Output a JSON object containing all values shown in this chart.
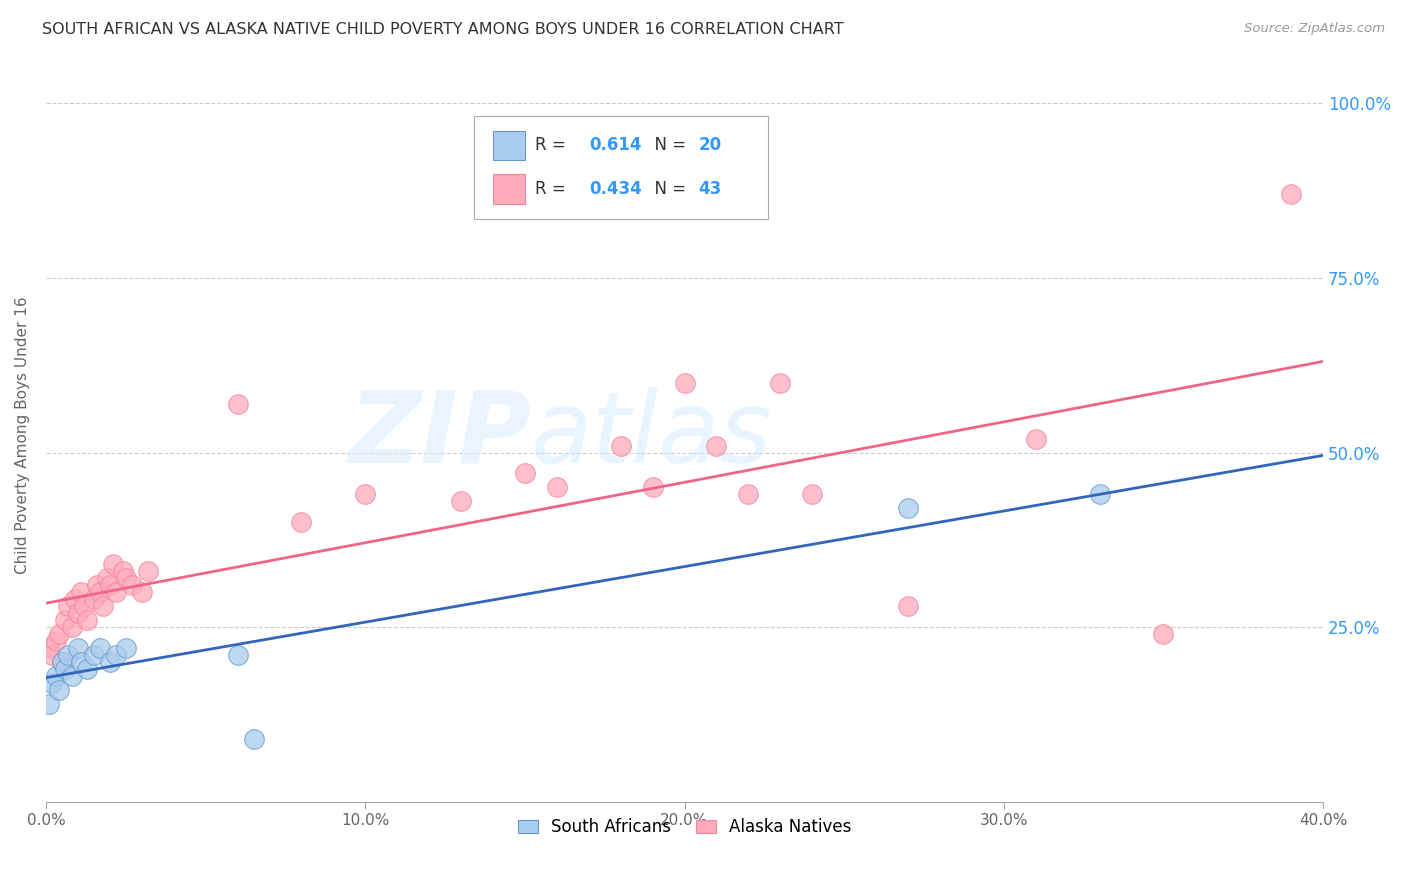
{
  "title": "SOUTH AFRICAN VS ALASKA NATIVE CHILD POVERTY AMONG BOYS UNDER 16 CORRELATION CHART",
  "source": "Source: ZipAtlas.com",
  "ylabel": "Child Poverty Among Boys Under 16",
  "xlim": [
    0.0,
    0.4
  ],
  "ylim": [
    0.0,
    1.05
  ],
  "xtick_labels": [
    "0.0%",
    "",
    "10.0%",
    "",
    "20.0%",
    "",
    "30.0%",
    "",
    "40.0%"
  ],
  "xtick_vals": [
    0.0,
    0.05,
    0.1,
    0.15,
    0.2,
    0.25,
    0.3,
    0.35,
    0.4
  ],
  "xtick_show": [
    "0.0%",
    "10.0%",
    "20.0%",
    "30.0%",
    "40.0%"
  ],
  "xtick_show_vals": [
    0.0,
    0.1,
    0.2,
    0.3,
    0.4
  ],
  "ytick_vals": [
    0.25,
    0.5,
    0.75,
    1.0
  ],
  "ytick_right_labels": [
    "25.0%",
    "50.0%",
    "75.0%",
    "100.0%"
  ],
  "background_color": "#ffffff",
  "grid_color": "#cccccc",
  "title_color": "#333333",
  "source_color": "#999999",
  "blue_scatter_color": "#aaccee",
  "blue_scatter_edge": "#6699cc",
  "pink_scatter_color": "#ffaabb",
  "pink_scatter_edge": "#ee8899",
  "blue_line_color": "#3366bb",
  "pink_line_color": "#ee6688",
  "legend_text_color": "#3399ff",
  "legend_label_color": "#333333",
  "south_africans_R": 0.614,
  "south_africans_N": 20,
  "alaska_natives_R": 0.434,
  "alaska_natives_N": 43,
  "sa_x": [
    0.001,
    0.002,
    0.003,
    0.004,
    0.005,
    0.006,
    0.007,
    0.008,
    0.01,
    0.011,
    0.013,
    0.015,
    0.017,
    0.02,
    0.022,
    0.025,
    0.06,
    0.065,
    0.27,
    0.33
  ],
  "sa_y": [
    0.14,
    0.17,
    0.18,
    0.16,
    0.2,
    0.19,
    0.21,
    0.18,
    0.22,
    0.2,
    0.19,
    0.21,
    0.22,
    0.2,
    0.21,
    0.22,
    0.21,
    0.09,
    0.42,
    0.44
  ],
  "an_x": [
    0.001,
    0.002,
    0.003,
    0.004,
    0.005,
    0.006,
    0.007,
    0.008,
    0.009,
    0.01,
    0.011,
    0.012,
    0.013,
    0.015,
    0.016,
    0.017,
    0.018,
    0.019,
    0.02,
    0.021,
    0.022,
    0.024,
    0.025,
    0.027,
    0.03,
    0.032,
    0.06,
    0.08,
    0.1,
    0.13,
    0.15,
    0.16,
    0.18,
    0.19,
    0.2,
    0.21,
    0.22,
    0.23,
    0.24,
    0.27,
    0.31,
    0.35,
    0.39
  ],
  "an_y": [
    0.22,
    0.21,
    0.23,
    0.24,
    0.2,
    0.26,
    0.28,
    0.25,
    0.29,
    0.27,
    0.3,
    0.28,
    0.26,
    0.29,
    0.31,
    0.3,
    0.28,
    0.32,
    0.31,
    0.34,
    0.3,
    0.33,
    0.32,
    0.31,
    0.3,
    0.33,
    0.57,
    0.4,
    0.44,
    0.43,
    0.47,
    0.45,
    0.51,
    0.45,
    0.6,
    0.51,
    0.44,
    0.6,
    0.44,
    0.28,
    0.52,
    0.24,
    0.87
  ]
}
